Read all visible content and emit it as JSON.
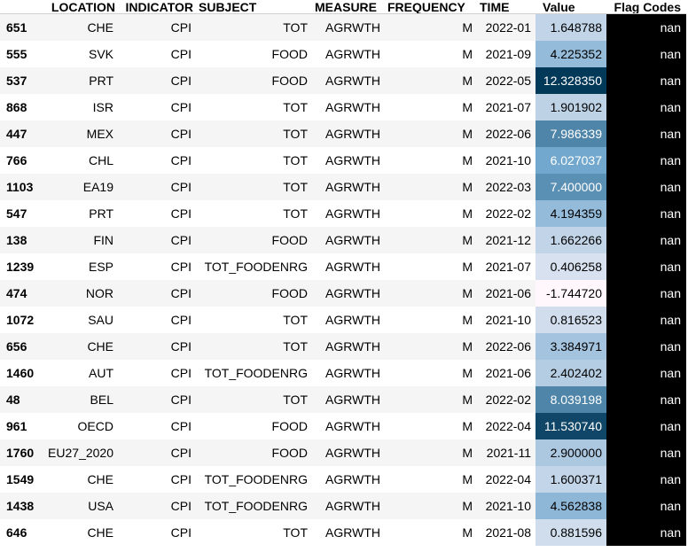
{
  "columns": [
    "LOCATION",
    "INDICATOR",
    "SUBJECT",
    "MEASURE",
    "FREQUENCY",
    "TIME",
    "Value",
    "Flag Codes"
  ],
  "rows": [
    {
      "index": "651",
      "location": "CHE",
      "indicator": "CPI",
      "subject": "TOT",
      "measure": "AGRWTH",
      "frequency": "M",
      "time": "2022-01",
      "value": "1.648788",
      "value_num": 1.648788,
      "flag": "nan"
    },
    {
      "index": "555",
      "location": "SVK",
      "indicator": "CPI",
      "subject": "FOOD",
      "measure": "AGRWTH",
      "frequency": "M",
      "time": "2021-09",
      "value": "4.225352",
      "value_num": 4.225352,
      "flag": "nan"
    },
    {
      "index": "537",
      "location": "PRT",
      "indicator": "CPI",
      "subject": "FOOD",
      "measure": "AGRWTH",
      "frequency": "M",
      "time": "2022-05",
      "value": "12.328350",
      "value_num": 12.32835,
      "flag": "nan"
    },
    {
      "index": "868",
      "location": "ISR",
      "indicator": "CPI",
      "subject": "TOT",
      "measure": "AGRWTH",
      "frequency": "M",
      "time": "2021-07",
      "value": "1.901902",
      "value_num": 1.901902,
      "flag": "nan"
    },
    {
      "index": "447",
      "location": "MEX",
      "indicator": "CPI",
      "subject": "TOT",
      "measure": "AGRWTH",
      "frequency": "M",
      "time": "2022-06",
      "value": "7.986339",
      "value_num": 7.986339,
      "flag": "nan"
    },
    {
      "index": "766",
      "location": "CHL",
      "indicator": "CPI",
      "subject": "TOT",
      "measure": "AGRWTH",
      "frequency": "M",
      "time": "2021-10",
      "value": "6.027037",
      "value_num": 6.027037,
      "flag": "nan"
    },
    {
      "index": "1103",
      "location": "EA19",
      "indicator": "CPI",
      "subject": "TOT",
      "measure": "AGRWTH",
      "frequency": "M",
      "time": "2022-03",
      "value": "7.400000",
      "value_num": 7.4,
      "flag": "nan"
    },
    {
      "index": "547",
      "location": "PRT",
      "indicator": "CPI",
      "subject": "TOT",
      "measure": "AGRWTH",
      "frequency": "M",
      "time": "2022-02",
      "value": "4.194359",
      "value_num": 4.194359,
      "flag": "nan"
    },
    {
      "index": "138",
      "location": "FIN",
      "indicator": "CPI",
      "subject": "FOOD",
      "measure": "AGRWTH",
      "frequency": "M",
      "time": "2021-12",
      "value": "1.662266",
      "value_num": 1.662266,
      "flag": "nan"
    },
    {
      "index": "1239",
      "location": "ESP",
      "indicator": "CPI",
      "subject": "TOT_FOODENRG",
      "measure": "AGRWTH",
      "frequency": "M",
      "time": "2021-07",
      "value": "0.406258",
      "value_num": 0.406258,
      "flag": "nan"
    },
    {
      "index": "474",
      "location": "NOR",
      "indicator": "CPI",
      "subject": "FOOD",
      "measure": "AGRWTH",
      "frequency": "M",
      "time": "2021-06",
      "value": "-1.744720",
      "value_num": -1.74472,
      "flag": "nan"
    },
    {
      "index": "1072",
      "location": "SAU",
      "indicator": "CPI",
      "subject": "TOT",
      "measure": "AGRWTH",
      "frequency": "M",
      "time": "2021-10",
      "value": "0.816523",
      "value_num": 0.816523,
      "flag": "nan"
    },
    {
      "index": "656",
      "location": "CHE",
      "indicator": "CPI",
      "subject": "TOT",
      "measure": "AGRWTH",
      "frequency": "M",
      "time": "2022-06",
      "value": "3.384971",
      "value_num": 3.384971,
      "flag": "nan"
    },
    {
      "index": "1460",
      "location": "AUT",
      "indicator": "CPI",
      "subject": "TOT_FOODENRG",
      "measure": "AGRWTH",
      "frequency": "M",
      "time": "2021-06",
      "value": "2.402402",
      "value_num": 2.402402,
      "flag": "nan"
    },
    {
      "index": "48",
      "location": "BEL",
      "indicator": "CPI",
      "subject": "TOT",
      "measure": "AGRWTH",
      "frequency": "M",
      "time": "2022-02",
      "value": "8.039198",
      "value_num": 8.039198,
      "flag": "nan"
    },
    {
      "index": "961",
      "location": "OECD",
      "indicator": "CPI",
      "subject": "FOOD",
      "measure": "AGRWTH",
      "frequency": "M",
      "time": "2022-04",
      "value": "11.530740",
      "value_num": 11.53074,
      "flag": "nan"
    },
    {
      "index": "1760",
      "location": "EU27_2020",
      "indicator": "CPI",
      "subject": "FOOD",
      "measure": "AGRWTH",
      "frequency": "M",
      "time": "2021-11",
      "value": "2.900000",
      "value_num": 2.9,
      "flag": "nan"
    },
    {
      "index": "1549",
      "location": "CHE",
      "indicator": "CPI",
      "subject": "TOT_FOODENRG",
      "measure": "AGRWTH",
      "frequency": "M",
      "time": "2022-04",
      "value": "1.600371",
      "value_num": 1.600371,
      "flag": "nan"
    },
    {
      "index": "1438",
      "location": "USA",
      "indicator": "CPI",
      "subject": "TOT_FOODENRG",
      "measure": "AGRWTH",
      "frequency": "M",
      "time": "2021-10",
      "value": "4.562838",
      "value_num": 4.562838,
      "flag": "nan"
    },
    {
      "index": "646",
      "location": "CHE",
      "indicator": "CPI",
      "subject": "TOT",
      "measure": "AGRWTH",
      "frequency": "M",
      "time": "2021-08",
      "value": "0.881596",
      "value_num": 0.881596,
      "flag": "nan"
    }
  ],
  "value_gradient": {
    "low_color": "#fff7fb",
    "mid_color": "#74a9cf",
    "high_color": "#023858"
  },
  "flag_cell_color": "#000000"
}
